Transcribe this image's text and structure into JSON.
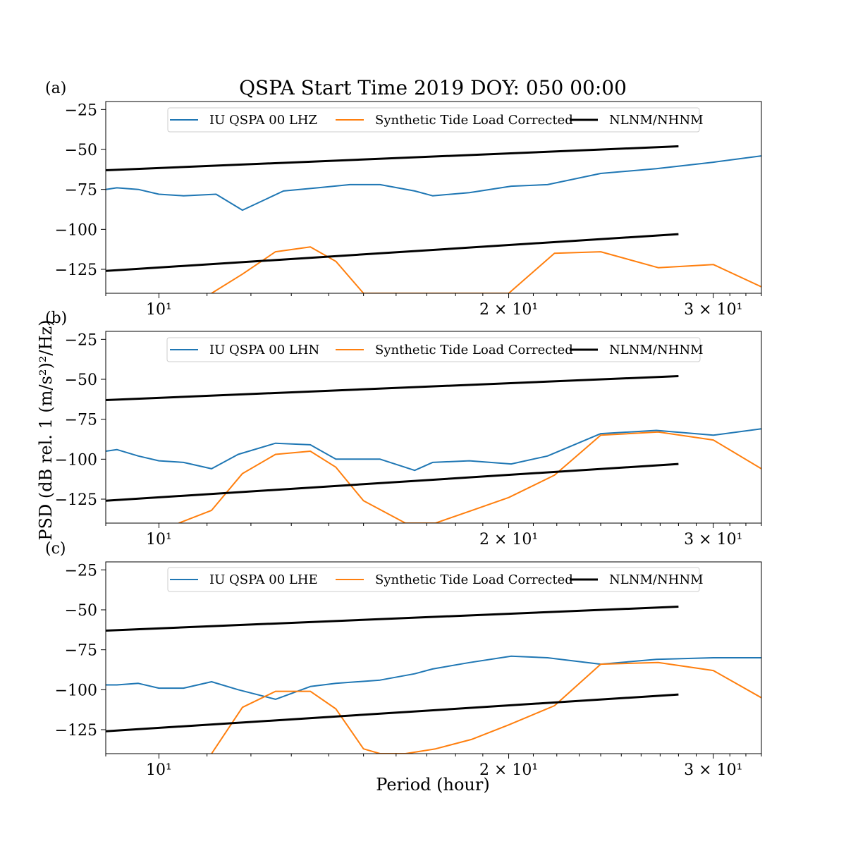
{
  "figure": {
    "title": "QSPA Start Time 2019 DOY: 050 00:00",
    "xlabel": "Period (hour)",
    "ylabel": "PSD (dB rel. 1 (m/s²)²/Hz)",
    "colors": {
      "station": "#1f77b4",
      "synthetic": "#ff7f0e",
      "model": "#000000"
    }
  },
  "chart_data": [
    {
      "type": "line",
      "panel_label": "(a)",
      "xscale": "log",
      "xlim": [
        9.0,
        33.0
      ],
      "ylim": [
        -140,
        -20
      ],
      "x_ticks": [
        10,
        20,
        30
      ],
      "x_tick_labels": [
        "10¹",
        "2 × 10¹",
        "3 × 10¹"
      ],
      "y_ticks": [
        -25,
        -50,
        -75,
        -100,
        -125
      ],
      "y_tick_labels": [
        "−25",
        "−50",
        "−75",
        "−100",
        "−125"
      ],
      "legend_position": "top-center",
      "series": [
        {
          "name": "IU QSPA 00 LHZ",
          "color": "#1f77b4",
          "x": [
            9.0,
            9.2,
            9.6,
            10.0,
            10.5,
            11.2,
            11.8,
            12.8,
            13.7,
            14.6,
            15.5,
            16.6,
            17.2,
            18.5,
            20.1,
            21.6,
            24.0,
            26.8,
            30.0,
            33.0
          ],
          "y": [
            -75,
            -74,
            -75,
            -78,
            -79,
            -78,
            -88,
            -76,
            -74,
            -72,
            -72,
            -76,
            -79,
            -77,
            -73,
            -72,
            -65,
            -62,
            -58,
            -54
          ]
        },
        {
          "name": "Synthetic Tide Load Corrected",
          "color": "#ff7f0e",
          "x": [
            11.1,
            11.8,
            12.6,
            13.5,
            14.2,
            15.0,
            20.0,
            21.9,
            24.0,
            26.9,
            30.0,
            33.0
          ],
          "y": [
            -140,
            -128,
            -114,
            -111,
            -120,
            -140,
            -140,
            -115,
            -114,
            -124,
            -122,
            -136
          ]
        },
        {
          "name": "NLNM/NHNM",
          "color": "#000000",
          "x": [
            9.0,
            28.0
          ],
          "y": [
            -63,
            -48
          ]
        },
        {
          "name": "NLNM/NHNM lower",
          "color": "#000000",
          "x": [
            9.0,
            28.0
          ],
          "y": [
            -126,
            -103
          ]
        }
      ]
    },
    {
      "type": "line",
      "panel_label": "(b)",
      "xscale": "log",
      "xlim": [
        9.0,
        33.0
      ],
      "ylim": [
        -140,
        -20
      ],
      "x_ticks": [
        10,
        20,
        30
      ],
      "x_tick_labels": [
        "10¹",
        "2 × 10¹",
        "3 × 10¹"
      ],
      "y_ticks": [
        -25,
        -50,
        -75,
        -100,
        -125
      ],
      "y_tick_labels": [
        "−25",
        "−50",
        "−75",
        "−100",
        "−125"
      ],
      "legend_position": "top-center",
      "series": [
        {
          "name": "IU QSPA 00 LHN",
          "color": "#1f77b4",
          "x": [
            9.0,
            9.2,
            9.6,
            10.0,
            10.5,
            11.1,
            11.7,
            12.6,
            13.5,
            14.2,
            15.5,
            16.6,
            17.2,
            18.5,
            20.1,
            21.6,
            24.0,
            26.8,
            30.0,
            33.0
          ],
          "y": [
            -95,
            -94,
            -98,
            -101,
            -102,
            -106,
            -97,
            -90,
            -91,
            -100,
            -100,
            -107,
            -102,
            -101,
            -103,
            -98,
            -84,
            -82,
            -85,
            -81
          ]
        },
        {
          "name": "Synthetic Tide Load Corrected",
          "color": "#ff7f0e",
          "x": [
            10.4,
            11.1,
            11.8,
            12.6,
            13.5,
            14.2,
            15.0,
            16.3,
            17.3,
            18.6,
            20.0,
            21.9,
            24.0,
            26.9,
            30.0,
            33.0
          ],
          "y": [
            -140,
            -132,
            -109,
            -97,
            -95,
            -105,
            -126,
            -140,
            -140,
            -132,
            -124,
            -110,
            -85,
            -83,
            -88,
            -106
          ]
        },
        {
          "name": "NLNM/NHNM",
          "color": "#000000",
          "x": [
            9.0,
            28.0
          ],
          "y": [
            -63,
            -48
          ]
        },
        {
          "name": "NLNM/NHNM lower",
          "color": "#000000",
          "x": [
            9.0,
            28.0
          ],
          "y": [
            -126,
            -103
          ]
        }
      ]
    },
    {
      "type": "line",
      "panel_label": "(c)",
      "xscale": "log",
      "xlim": [
        9.0,
        33.0
      ],
      "ylim": [
        -140,
        -20
      ],
      "x_ticks": [
        10,
        20,
        30
      ],
      "x_tick_labels": [
        "10¹",
        "2 × 10¹",
        "3 × 10¹"
      ],
      "y_ticks": [
        -25,
        -50,
        -75,
        -100,
        -125
      ],
      "y_tick_labels": [
        "−25",
        "−50",
        "−75",
        "−100",
        "−125"
      ],
      "legend_position": "top-center",
      "series": [
        {
          "name": "IU QSPA 00 LHE",
          "color": "#1f77b4",
          "x": [
            9.0,
            9.2,
            9.6,
            10.0,
            10.5,
            11.1,
            11.7,
            12.6,
            13.5,
            14.2,
            15.5,
            16.6,
            17.2,
            18.5,
            20.1,
            21.6,
            24.0,
            26.8,
            30.0,
            33.0
          ],
          "y": [
            -97,
            -97,
            -96,
            -99,
            -99,
            -95,
            -100,
            -106,
            -98,
            -96,
            -94,
            -90,
            -87,
            -83,
            -79,
            -80,
            -84,
            -81,
            -80,
            -80
          ]
        },
        {
          "name": "Synthetic Tide Load Corrected",
          "color": "#ff7f0e",
          "x": [
            11.1,
            11.8,
            12.6,
            13.5,
            14.2,
            15.0,
            15.5,
            16.3,
            17.3,
            18.6,
            20.0,
            21.9,
            24.0,
            26.9,
            30.0,
            33.0
          ],
          "y": [
            -140,
            -111,
            -101,
            -101,
            -112,
            -137,
            -140,
            -140,
            -137,
            -131,
            -122,
            -110,
            -84,
            -83,
            -88,
            -105
          ]
        },
        {
          "name": "NLNM/NHNM",
          "color": "#000000",
          "x": [
            9.0,
            28.0
          ],
          "y": [
            -63,
            -48
          ]
        },
        {
          "name": "NLNM/NHNM lower",
          "color": "#000000",
          "x": [
            9.0,
            28.0
          ],
          "y": [
            -126,
            -103
          ]
        }
      ]
    }
  ]
}
